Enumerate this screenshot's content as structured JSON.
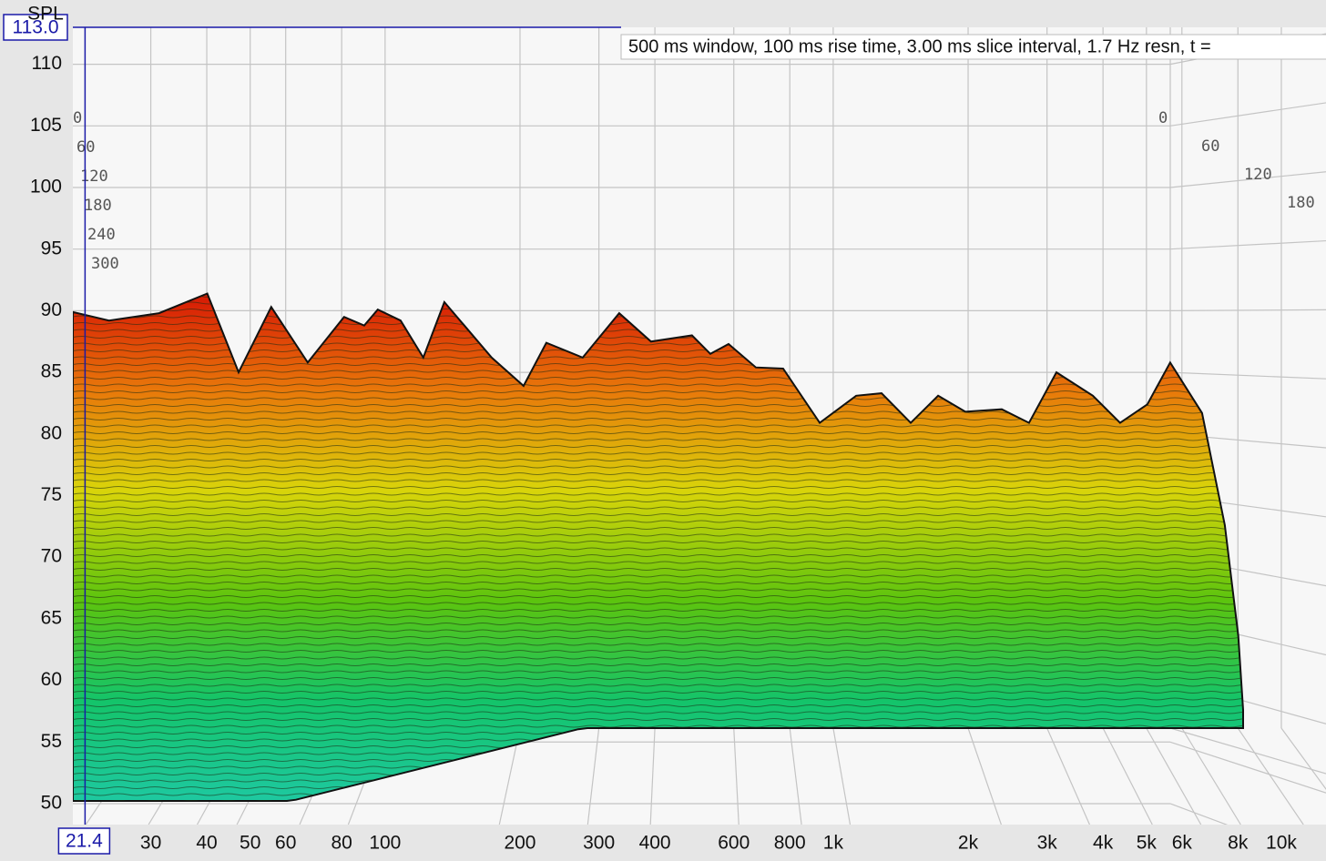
{
  "chart_data": {
    "type": "waterfall",
    "y_label": "SPL",
    "annotation": "500 ms window, 100 ms rise time, 3.00 ms slice interval, 1.7 Hz resn, t =",
    "cursor": {
      "x": 21.4,
      "y": {
        "value": 113,
        "label": "113.0"
      }
    },
    "xscale": "log",
    "grid": true,
    "xlim": [
      20.1,
      12580
    ],
    "ylim": [
      48.3,
      113
    ],
    "yticks": [
      50,
      55,
      60,
      65,
      70,
      75,
      80,
      85,
      90,
      95,
      100,
      105,
      110
    ],
    "xticks": [
      30,
      40,
      50,
      60,
      80,
      100,
      200,
      300,
      400,
      600,
      800,
      {
        "value": 1000,
        "label": "1k"
      },
      {
        "value": 2000,
        "label": "2k"
      },
      {
        "value": 3000,
        "label": "3k"
      },
      {
        "value": 4000,
        "label": "4k"
      },
      {
        "value": 5000,
        "label": "5k"
      },
      {
        "value": 6000,
        "label": "6k"
      },
      {
        "value": 8000,
        "label": "8k"
      },
      {
        "value": 10000,
        "label": "10k"
      }
    ],
    "time_ticks": [
      0,
      60,
      120,
      180,
      240,
      300
    ],
    "x": [
      20.1,
      24.2,
      31.3,
      40.1,
      47.1,
      55.7,
      67.2,
      81,
      89.8,
      96.3,
      108.3,
      121.7,
      135.6,
      172.9,
      203.7,
      229,
      276,
      333,
      392,
      484,
      532,
      584,
      672,
      773,
      933,
      1125,
      1282,
      1489,
      1714,
      1972,
      2378,
      2735,
      3148,
      3796,
      4366,
      5023,
      5649,
      6653,
      7480,
      8017,
      8218
    ],
    "values": [
      89.9,
      89.2,
      89.8,
      91.4,
      85.0,
      90.3,
      85.8,
      89.5,
      88.8,
      90.1,
      89.2,
      86.2,
      90.7,
      86.2,
      83.9,
      87.4,
      86.2,
      89.8,
      87.5,
      88.0,
      86.5,
      87.3,
      85.4,
      85.3,
      80.9,
      83.1,
      83.3,
      80.9,
      83.1,
      81.8,
      82.0,
      80.9,
      85.0,
      83.1,
      80.9,
      82.4,
      85.8,
      81.7,
      72.6,
      63.6,
      57.6
    ]
  }
}
